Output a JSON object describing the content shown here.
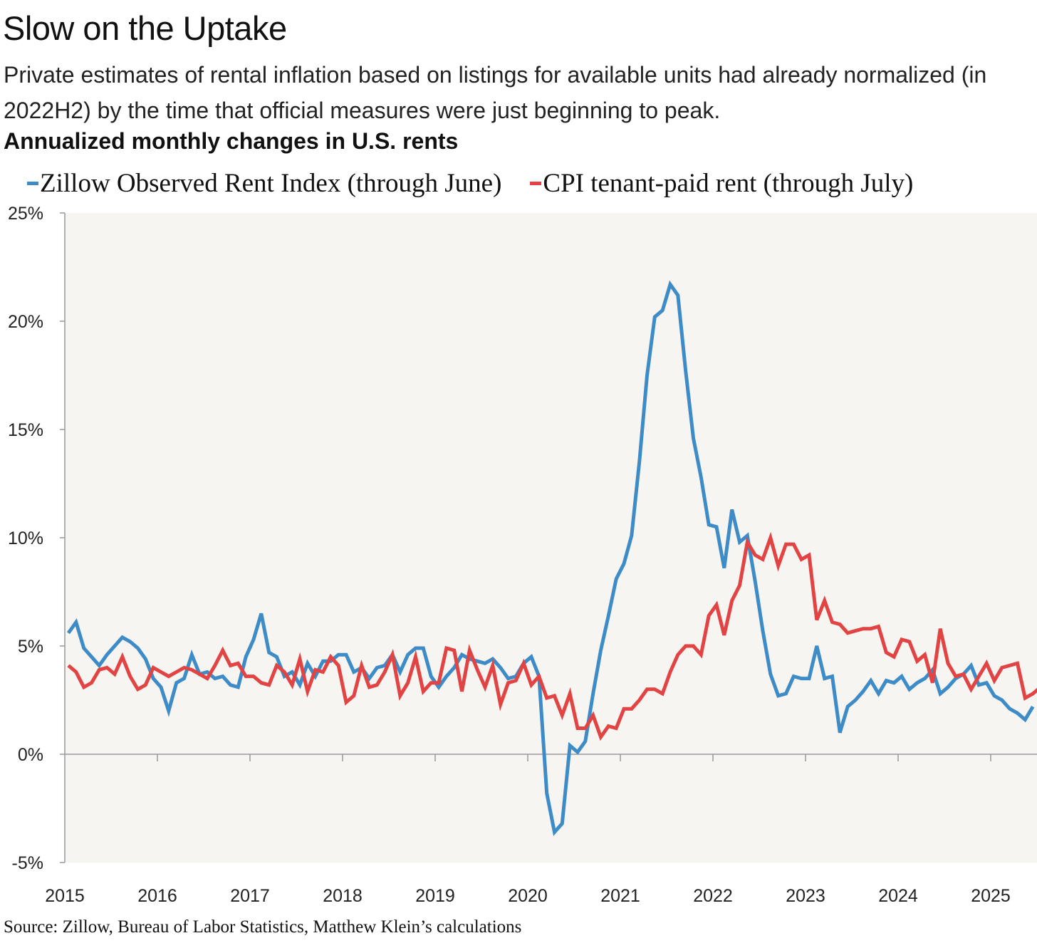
{
  "title": "Slow on the Uptake",
  "subtitle": "Private estimates of rental inflation based on listings for available units had already normalized (in 2022H2) by the time that official measures were just beginning to peak.",
  "heading": "Annualized monthly changes in U.S. rents",
  "source": "Source: Zillow, Bureau of Labor Statistics, Matthew Klein’s calculations",
  "colors": {
    "zillow": "#3d8bc7",
    "cpi": "#e24343",
    "plot_bg": "#f6f5f2",
    "axis": "#999999"
  },
  "chart_data": {
    "type": "line",
    "title": "Annualized monthly changes in U.S. rents",
    "xlabel": "",
    "ylabel": "",
    "ylim": [
      -5,
      25
    ],
    "yticks": [
      "-5%",
      "0%",
      "5%",
      "10%",
      "15%",
      "20%",
      "25%"
    ],
    "ytick_values": [
      -5,
      0,
      5,
      10,
      15,
      20,
      25
    ],
    "xticks": [
      "2015",
      "2016",
      "2017",
      "2018",
      "2019",
      "2020",
      "2021",
      "2022",
      "2023",
      "2024",
      "2025"
    ],
    "x_start": "2015-01",
    "frequency": "monthly",
    "legend_position": "top",
    "grid": false,
    "series": [
      {
        "name": "Zillow Observed Rent Index (through June)",
        "color": "#3d8bc7",
        "values": [
          5.6,
          6.1,
          4.9,
          4.5,
          4.1,
          4.6,
          5.0,
          5.4,
          5.2,
          4.9,
          4.4,
          3.5,
          3.1,
          2.0,
          3.3,
          3.5,
          4.6,
          3.7,
          3.8,
          3.5,
          3.6,
          3.2,
          3.1,
          4.5,
          5.3,
          6.5,
          4.7,
          4.5,
          3.6,
          3.8,
          3.2,
          4.2,
          3.6,
          4.3,
          4.3,
          4.6,
          4.6,
          3.8,
          4.0,
          3.5,
          4.0,
          4.1,
          4.6,
          3.8,
          4.6,
          4.9,
          4.9,
          3.6,
          3.1,
          3.6,
          4.0,
          4.6,
          4.4,
          4.3,
          4.2,
          4.4,
          4.0,
          3.5,
          3.6,
          4.2,
          4.5,
          3.6,
          -1.8,
          -3.6,
          -3.2,
          0.4,
          0.1,
          0.6,
          2.8,
          4.8,
          6.4,
          8.1,
          8.8,
          10.1,
          13.5,
          17.5,
          20.2,
          20.5,
          21.7,
          21.2,
          17.7,
          14.6,
          12.8,
          10.6,
          10.5,
          8.6,
          11.3,
          9.8,
          10.1,
          8.0,
          5.7,
          3.7,
          2.7,
          2.8,
          3.6,
          3.5,
          3.5,
          5.0,
          3.5,
          3.6,
          1.0,
          2.2,
          2.5,
          2.9,
          3.4,
          2.8,
          3.4,
          3.3,
          3.6,
          3.0,
          3.3,
          3.5,
          3.9,
          2.8,
          3.1,
          3.5,
          3.7,
          4.1,
          3.2,
          3.3,
          2.7,
          2.5,
          2.1,
          1.9,
          1.6,
          2.2
        ]
      },
      {
        "name": "CPI tenant-paid rent (through July)",
        "color": "#e24343",
        "values": [
          4.1,
          3.8,
          3.1,
          3.3,
          3.9,
          4.0,
          3.7,
          4.5,
          3.6,
          3.0,
          3.2,
          4.0,
          3.8,
          3.6,
          3.8,
          4.0,
          3.9,
          3.7,
          3.5,
          4.1,
          4.8,
          4.1,
          4.2,
          3.6,
          3.6,
          3.3,
          3.2,
          4.1,
          3.8,
          3.2,
          4.4,
          2.9,
          3.9,
          3.8,
          4.5,
          4.1,
          2.4,
          2.7,
          4.1,
          3.1,
          3.2,
          3.8,
          4.6,
          2.7,
          3.3,
          4.5,
          2.9,
          3.3,
          3.3,
          4.9,
          4.8,
          2.9,
          4.8,
          3.9,
          3.1,
          4.1,
          2.3,
          3.3,
          3.4,
          4.2,
          3.2,
          3.6,
          2.6,
          2.7,
          1.8,
          2.8,
          1.2,
          1.2,
          1.8,
          0.8,
          1.3,
          1.2,
          2.1,
          2.1,
          2.5,
          3.0,
          3.0,
          2.8,
          3.8,
          4.6,
          5.0,
          5.0,
          4.6,
          6.4,
          6.9,
          5.5,
          7.1,
          7.8,
          9.8,
          9.2,
          9.0,
          10.0,
          8.7,
          9.7,
          9.7,
          9.0,
          9.2,
          6.2,
          7.1,
          6.1,
          6.0,
          5.6,
          5.7,
          5.8,
          5.8,
          5.9,
          4.7,
          4.5,
          5.3,
          5.2,
          4.3,
          4.6,
          3.3,
          5.8,
          4.2,
          3.6,
          3.7,
          3.0,
          3.6,
          4.2,
          3.4,
          4.0,
          4.1,
          4.2,
          2.6,
          2.8,
          3.1
        ]
      }
    ]
  }
}
